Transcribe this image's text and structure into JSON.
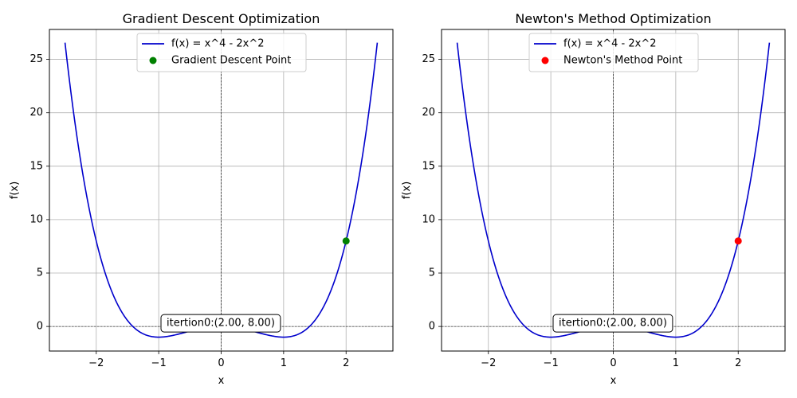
{
  "chart_data": [
    {
      "type": "line",
      "title": "Gradient Descent Optimization",
      "xlabel": "x",
      "ylabel": "f(x)",
      "xlim": [
        -2.75,
        2.75
      ],
      "ylim": [
        -2.3,
        27.8
      ],
      "xticks": [
        -2,
        -1,
        0,
        1,
        2
      ],
      "yticks": [
        0,
        5,
        10,
        15,
        20,
        25
      ],
      "xtick_labels": [
        "−2",
        "−1",
        "0",
        "1",
        "2"
      ],
      "ytick_labels": [
        "0",
        "5",
        "10",
        "15",
        "20",
        "25"
      ],
      "grid": true,
      "legend_position": "upper center",
      "function": {
        "name": "f(x) = x^4 - 2x^2",
        "x_range": [
          -2.5,
          2.5
        ],
        "color": "#0000cc"
      },
      "point": {
        "name": "Gradient Descent Point",
        "x": 2.0,
        "y": 8.0,
        "color": "#008000"
      },
      "annotation": "itertion0:(2.00, 8.00)"
    },
    {
      "type": "line",
      "title": "Newton's Method Optimization",
      "xlabel": "x",
      "ylabel": "f(x)",
      "xlim": [
        -2.75,
        2.75
      ],
      "ylim": [
        -2.3,
        27.8
      ],
      "xticks": [
        -2,
        -1,
        0,
        1,
        2
      ],
      "yticks": [
        0,
        5,
        10,
        15,
        20,
        25
      ],
      "xtick_labels": [
        "−2",
        "−1",
        "0",
        "1",
        "2"
      ],
      "ytick_labels": [
        "0",
        "5",
        "10",
        "15",
        "20",
        "25"
      ],
      "grid": true,
      "legend_position": "upper center",
      "function": {
        "name": "f(x) = x^4 - 2x^2",
        "x_range": [
          -2.5,
          2.5
        ],
        "color": "#0000cc"
      },
      "point": {
        "name": "Newton's Method Point",
        "x": 2.0,
        "y": 8.0,
        "color": "#ff0000"
      },
      "annotation": "itertion0:(2.00, 8.00)"
    }
  ]
}
